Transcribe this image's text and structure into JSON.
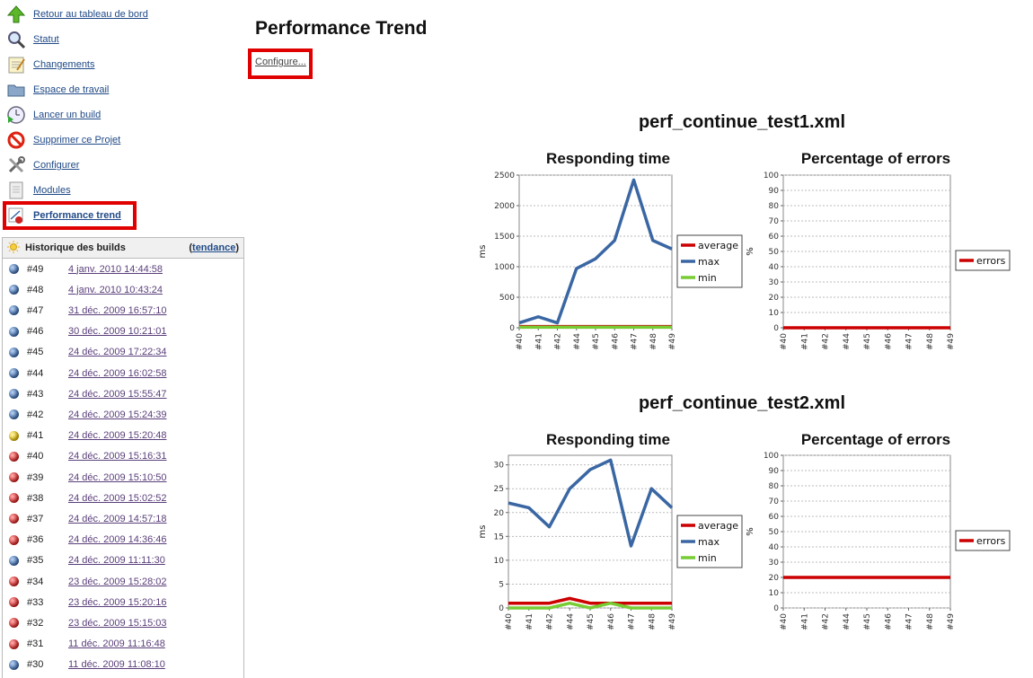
{
  "sidebar": {
    "items": [
      {
        "label": "Retour au tableau de bord",
        "icon": "up-arrow-icon"
      },
      {
        "label": "Statut",
        "icon": "magnifier-icon"
      },
      {
        "label": "Changements",
        "icon": "notepad-icon"
      },
      {
        "label": "Espace de travail",
        "icon": "folder-icon"
      },
      {
        "label": "Lancer un build",
        "icon": "clock-play-icon"
      },
      {
        "label": "Supprimer ce Projet",
        "icon": "no-entry-icon"
      },
      {
        "label": "Configurer",
        "icon": "tools-icon"
      },
      {
        "label": "Modules",
        "icon": "document-icon"
      },
      {
        "label": "Performance trend",
        "icon": "graph-icon"
      }
    ]
  },
  "history": {
    "title": "Historique des builds",
    "trend_link": "tendance",
    "builds": [
      {
        "num": "#49",
        "date": "4 janv. 2010 14:44:58",
        "status": "blue"
      },
      {
        "num": "#48",
        "date": "4 janv. 2010 10:43:24",
        "status": "blue"
      },
      {
        "num": "#47",
        "date": "31 déc. 2009 16:57:10",
        "status": "blue"
      },
      {
        "num": "#46",
        "date": "30 déc. 2009 10:21:01",
        "status": "blue"
      },
      {
        "num": "#45",
        "date": "24 déc. 2009 17:22:34",
        "status": "blue"
      },
      {
        "num": "#44",
        "date": "24 déc. 2009 16:02:58",
        "status": "blue"
      },
      {
        "num": "#43",
        "date": "24 déc. 2009 15:55:47",
        "status": "blue"
      },
      {
        "num": "#42",
        "date": "24 déc. 2009 15:24:39",
        "status": "blue"
      },
      {
        "num": "#41",
        "date": "24 déc. 2009 15:20:48",
        "status": "yellow"
      },
      {
        "num": "#40",
        "date": "24 déc. 2009 15:16:31",
        "status": "red"
      },
      {
        "num": "#39",
        "date": "24 déc. 2009 15:10:50",
        "status": "red"
      },
      {
        "num": "#38",
        "date": "24 déc. 2009 15:02:52",
        "status": "red"
      },
      {
        "num": "#37",
        "date": "24 déc. 2009 14:57:18",
        "status": "red"
      },
      {
        "num": "#36",
        "date": "24 déc. 2009 14:36:46",
        "status": "red"
      },
      {
        "num": "#35",
        "date": "24 déc. 2009 11:11:30",
        "status": "blue"
      },
      {
        "num": "#34",
        "date": "23 déc. 2009 15:28:02",
        "status": "red"
      },
      {
        "num": "#33",
        "date": "23 déc. 2009 15:20:16",
        "status": "red"
      },
      {
        "num": "#32",
        "date": "23 déc. 2009 15:15:03",
        "status": "red"
      },
      {
        "num": "#31",
        "date": "11 déc. 2009 11:16:48",
        "status": "red"
      },
      {
        "num": "#30",
        "date": "11 déc. 2009 11:08:10",
        "status": "blue"
      }
    ]
  },
  "main": {
    "title": "Performance Trend",
    "configure_link": "Configure..."
  },
  "colors": {
    "average": "#cc0000",
    "max": "#3a67a3",
    "min": "#77cc33",
    "highlight": "#e00000"
  },
  "chart_data": [
    {
      "type": "line",
      "file": "perf_continue_test1.xml",
      "title": "Responding time",
      "ylabel": "ms",
      "categories": [
        "#40",
        "#41",
        "#42",
        "#44",
        "#45",
        "#46",
        "#47",
        "#48",
        "#49"
      ],
      "ylim": [
        0,
        2500
      ],
      "yticks": [
        0,
        500,
        1000,
        1500,
        2000,
        2500
      ],
      "series": [
        {
          "name": "average",
          "values": [
            20,
            20,
            20,
            20,
            20,
            20,
            20,
            20,
            20
          ]
        },
        {
          "name": "max",
          "values": [
            80,
            180,
            80,
            970,
            1130,
            1430,
            2420,
            1430,
            1290
          ]
        },
        {
          "name": "min",
          "values": [
            10,
            10,
            10,
            10,
            10,
            10,
            10,
            10,
            10
          ]
        }
      ],
      "legend": "right"
    },
    {
      "type": "line",
      "file": "perf_continue_test1.xml",
      "title": "Percentage of errors",
      "ylabel": "%",
      "categories": [
        "#40",
        "#41",
        "#42",
        "#44",
        "#45",
        "#46",
        "#47",
        "#48",
        "#49"
      ],
      "ylim": [
        0,
        100
      ],
      "yticks": [
        0,
        10,
        20,
        30,
        40,
        50,
        60,
        70,
        80,
        90,
        100
      ],
      "series": [
        {
          "name": "errors",
          "values": [
            0,
            0,
            0,
            0,
            0,
            0,
            0,
            0,
            0
          ]
        }
      ],
      "legend": "right"
    },
    {
      "type": "line",
      "file": "perf_continue_test2.xml",
      "title": "Responding time",
      "ylabel": "ms",
      "categories": [
        "#40",
        "#41",
        "#42",
        "#44",
        "#45",
        "#46",
        "#47",
        "#48",
        "#49"
      ],
      "ylim": [
        0,
        32
      ],
      "yticks": [
        0,
        5,
        10,
        15,
        20,
        25,
        30
      ],
      "series": [
        {
          "name": "average",
          "values": [
            1,
            1,
            1,
            2,
            1,
            1,
            1,
            1,
            1
          ]
        },
        {
          "name": "max",
          "values": [
            22,
            21,
            17,
            25,
            29,
            31,
            13,
            25,
            21
          ]
        },
        {
          "name": "min",
          "values": [
            0,
            0,
            0,
            1,
            0,
            1,
            0,
            0,
            0
          ]
        }
      ],
      "legend": "right"
    },
    {
      "type": "line",
      "file": "perf_continue_test2.xml",
      "title": "Percentage of errors",
      "ylabel": "%",
      "categories": [
        "#40",
        "#41",
        "#42",
        "#44",
        "#45",
        "#46",
        "#47",
        "#48",
        "#49"
      ],
      "ylim": [
        0,
        100
      ],
      "yticks": [
        0,
        10,
        20,
        30,
        40,
        50,
        60,
        70,
        80,
        90,
        100
      ],
      "series": [
        {
          "name": "errors",
          "values": [
            20,
            20,
            20,
            20,
            20,
            20,
            20,
            20,
            20
          ]
        }
      ],
      "legend": "right"
    }
  ]
}
